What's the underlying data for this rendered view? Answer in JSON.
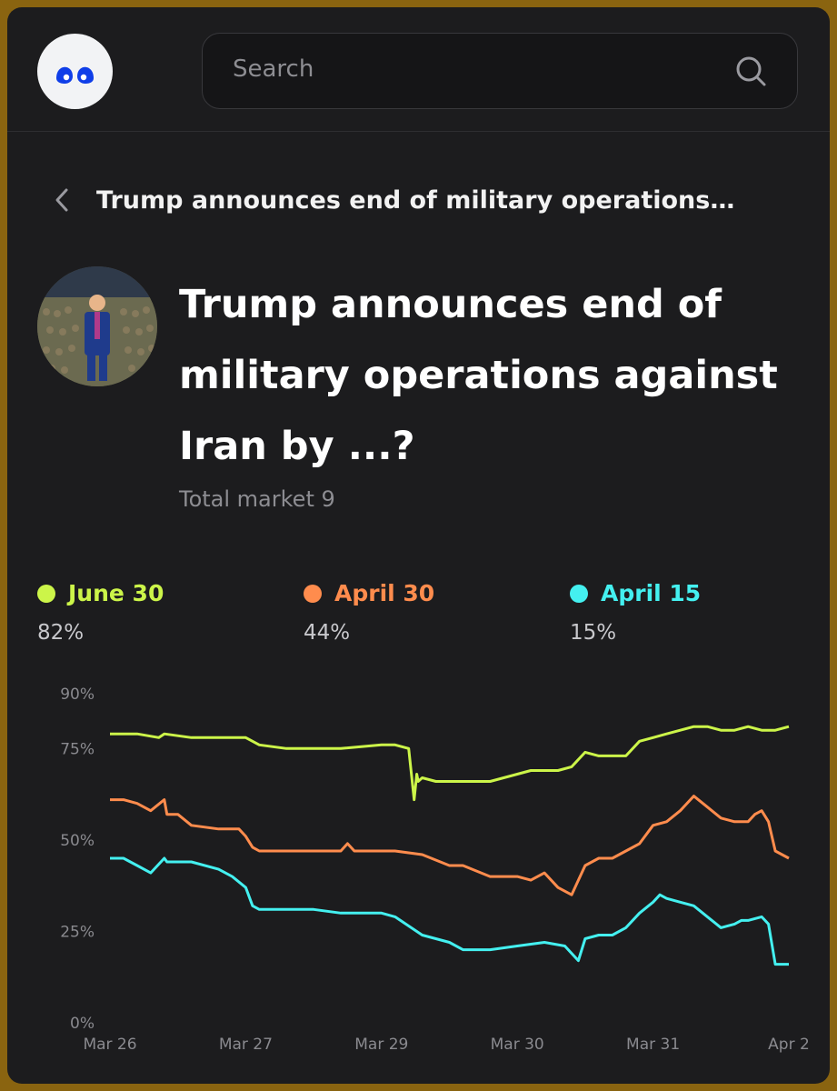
{
  "header": {
    "logo_icon": "eyes-logo-icon",
    "search": {
      "placeholder": "Search",
      "icon": "search-icon"
    }
  },
  "breadcrumb": {
    "back_icon": "chevron-left-icon",
    "text": "Trump announces end of military operations…"
  },
  "market": {
    "title": "Trump announces end of military operations against Iran by ...?",
    "total": "Total market 9"
  },
  "legend": [
    {
      "label": "June 30",
      "pct": "82%",
      "color": "#ccf549"
    },
    {
      "label": "April 30",
      "pct": "44%",
      "color": "#ff8c4d"
    },
    {
      "label": "April 15",
      "pct": "15%",
      "color": "#44f0f0"
    }
  ],
  "chart_data": {
    "type": "line",
    "y_ticks": [
      "90%",
      "75%",
      "50%",
      "25%",
      "0%"
    ],
    "y_tick_values": [
      90,
      75,
      50,
      25,
      0
    ],
    "ylim": [
      0,
      90
    ],
    "x_ticks": [
      "Mar 26",
      "Mar 27",
      "Mar 29",
      "Mar 30",
      "Mar 31",
      "Apr 2"
    ],
    "xlim": [
      0,
      5
    ],
    "series": [
      {
        "name": "June 30",
        "color": "#ccf549",
        "x": [
          0,
          0.2,
          0.36,
          0.4,
          0.6,
          1.0,
          1.1,
          1.3,
          1.5,
          1.7,
          2.0,
          2.1,
          2.2,
          2.24,
          2.26,
          2.27,
          2.3,
          2.4,
          2.6,
          2.8,
          3.0,
          3.1,
          3.3,
          3.4,
          3.5,
          3.6,
          3.7,
          3.8,
          3.9,
          4.0,
          4.1,
          4.2,
          4.3,
          4.4,
          4.5,
          4.6,
          4.7,
          4.8,
          4.9,
          5.0
        ],
        "values": [
          79,
          79,
          78,
          79,
          78,
          78,
          76,
          75,
          75,
          75,
          76,
          76,
          75,
          61,
          68,
          66,
          67,
          66,
          66,
          66,
          68,
          69,
          69,
          70,
          74,
          73,
          73,
          73,
          77,
          78,
          79,
          80,
          81,
          81,
          80,
          80,
          81,
          80,
          80,
          81
        ]
      },
      {
        "name": "April 30",
        "color": "#ff8c4d",
        "x": [
          0,
          0.1,
          0.2,
          0.3,
          0.4,
          0.42,
          0.5,
          0.6,
          0.8,
          0.95,
          1.0,
          1.05,
          1.1,
          1.3,
          1.5,
          1.7,
          1.75,
          1.8,
          2.0,
          2.1,
          2.3,
          2.5,
          2.6,
          2.8,
          3.0,
          3.1,
          3.2,
          3.3,
          3.4,
          3.5,
          3.6,
          3.7,
          3.8,
          3.9,
          4.0,
          4.1,
          4.2,
          4.3,
          4.4,
          4.5,
          4.6,
          4.7,
          4.75,
          4.8,
          4.85,
          4.9,
          5.0
        ],
        "values": [
          61,
          61,
          60,
          58,
          61,
          57,
          57,
          54,
          53,
          53,
          51,
          48,
          47,
          47,
          47,
          47,
          49,
          47,
          47,
          47,
          46,
          43,
          43,
          40,
          40,
          39,
          41,
          37,
          35,
          43,
          45,
          45,
          47,
          49,
          54,
          55,
          58,
          62,
          59,
          56,
          55,
          55,
          57,
          58,
          55,
          47,
          45
        ]
      },
      {
        "name": "April 15",
        "color": "#44f0f0",
        "x": [
          0,
          0.1,
          0.2,
          0.3,
          0.4,
          0.42,
          0.5,
          0.6,
          0.8,
          0.9,
          1.0,
          1.05,
          1.1,
          1.3,
          1.5,
          1.7,
          2.0,
          2.1,
          2.3,
          2.4,
          2.5,
          2.6,
          2.8,
          3.0,
          3.2,
          3.35,
          3.45,
          3.5,
          3.6,
          3.7,
          3.8,
          3.9,
          4.0,
          4.05,
          4.1,
          4.2,
          4.3,
          4.4,
          4.5,
          4.6,
          4.65,
          4.7,
          4.8,
          4.85,
          4.9,
          5.0
        ],
        "values": [
          45,
          45,
          43,
          41,
          45,
          44,
          44,
          44,
          42,
          40,
          37,
          32,
          31,
          31,
          31,
          30,
          30,
          29,
          24,
          23,
          22,
          20,
          20,
          21,
          22,
          21,
          17,
          23,
          24,
          24,
          26,
          30,
          33,
          35,
          34,
          33,
          32,
          29,
          26,
          27,
          28,
          28,
          29,
          27,
          16,
          16
        ]
      }
    ]
  }
}
